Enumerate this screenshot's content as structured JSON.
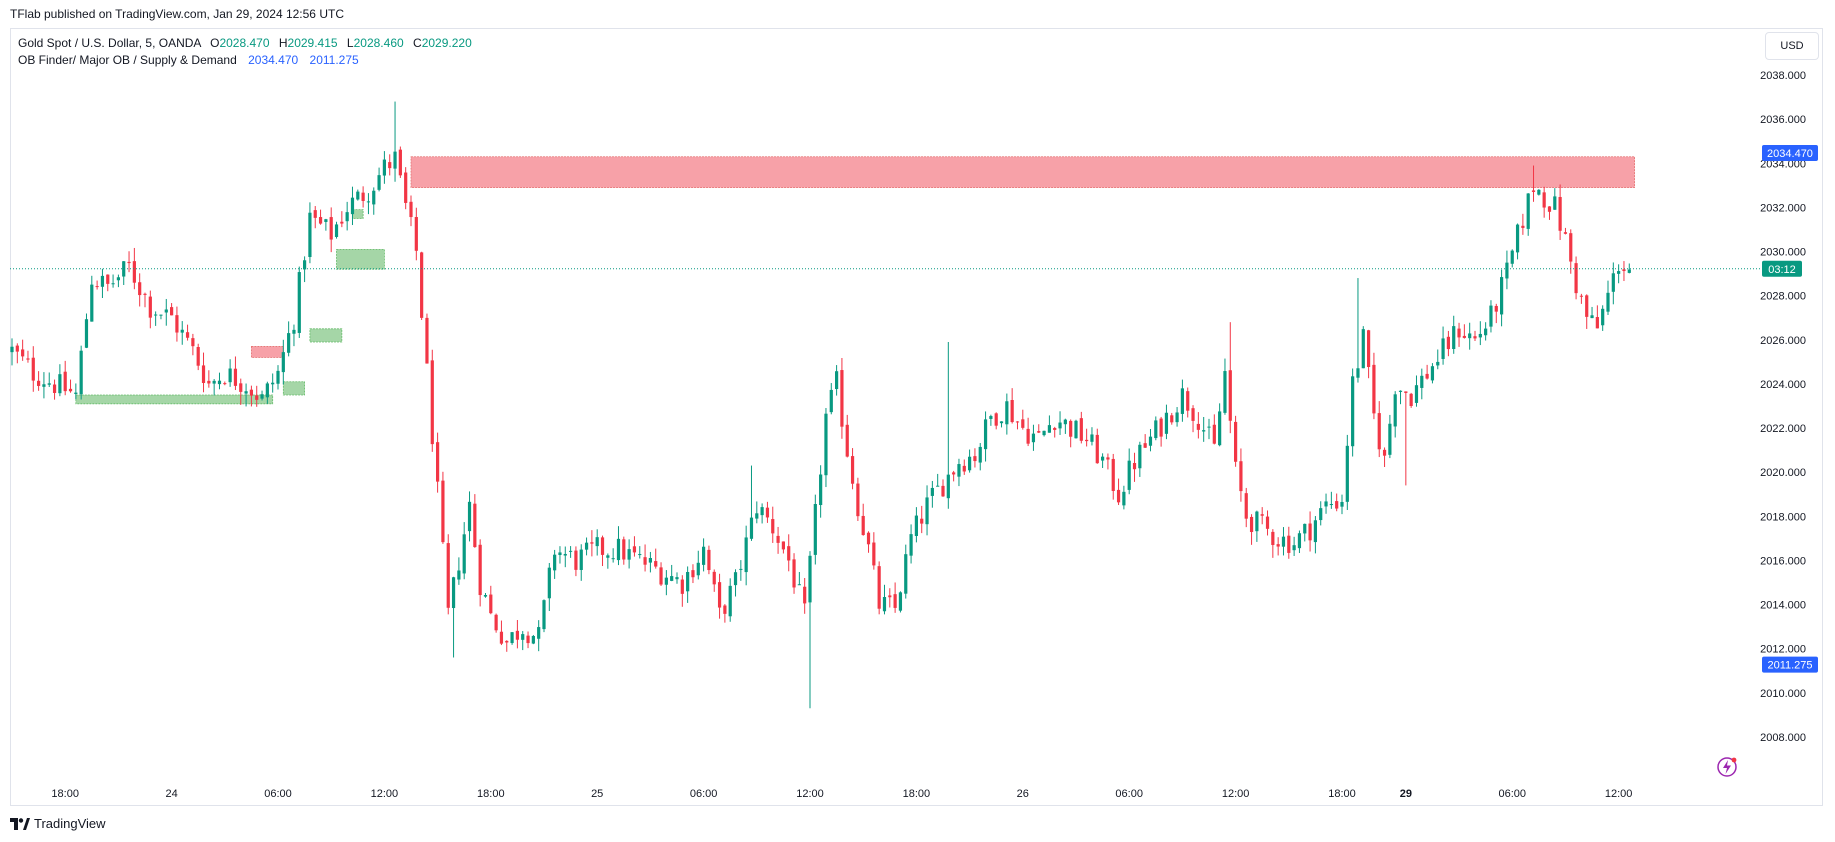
{
  "published_line": "TFlab published on TradingView.com, Jan 29, 2024 12:56 UTC",
  "legend": {
    "symbol": "Gold Spot / U.S. Dollar, 5, OANDA",
    "o_label": "O",
    "o_value": "2028.470",
    "h_label": "H",
    "h_value": "2029.415",
    "l_label": "L",
    "l_value": "2028.460",
    "c_label": "C",
    "c_value": "2029.220",
    "indicator": "OB Finder/ Major OB / Supply & Demand",
    "ind_value_1": "2034.470",
    "ind_value_2": "2011.275"
  },
  "currency_button": "USD",
  "footer_brand": "TradingView",
  "colors": {
    "up": "#089981",
    "down": "#f23645",
    "supply_zone": "#f7a1a8",
    "demand_zone": "#a5d6a7",
    "label_blue": "#2962ff",
    "last_price": "#089981"
  },
  "chart_data": {
    "type": "candlestick",
    "ylim": [
      2006.5,
      2039.5
    ],
    "y_ticks": [
      "2008.000",
      "2010.000",
      "2012.000",
      "2014.000",
      "2016.000",
      "2018.000",
      "2020.000",
      "2022.000",
      "2024.000",
      "2026.000",
      "2028.000",
      "2030.000",
      "2032.000",
      "2034.000",
      "2036.000",
      "2038.000"
    ],
    "x_ticks": [
      {
        "label": "18:00",
        "i": 10
      },
      {
        "label": "24",
        "i": 30
      },
      {
        "label": "06:00",
        "i": 50
      },
      {
        "label": "12:00",
        "i": 70
      },
      {
        "label": "18:00",
        "i": 90
      },
      {
        "label": "25",
        "i": 110
      },
      {
        "label": "06:00",
        "i": 130
      },
      {
        "label": "12:00",
        "i": 150
      },
      {
        "label": "18:00",
        "i": 170
      },
      {
        "label": "26",
        "i": 190
      },
      {
        "label": "06:00",
        "i": 210
      },
      {
        "label": "12:00",
        "i": 230
      },
      {
        "label": "18:00",
        "i": 250
      },
      {
        "label": "29",
        "i": 262
      },
      {
        "label": "06:00",
        "i": 282
      },
      {
        "label": "12:00",
        "i": 302
      }
    ],
    "n_bars": 305,
    "close_path": [
      [
        0,
        2025.5
      ],
      [
        4,
        2024.5
      ],
      [
        8,
        2024.0
      ],
      [
        12,
        2023.5
      ],
      [
        15,
        2028.8
      ],
      [
        18,
        2028.4
      ],
      [
        22,
        2029.3
      ],
      [
        26,
        2027.5
      ],
      [
        30,
        2027.0
      ],
      [
        34,
        2025.5
      ],
      [
        37,
        2024.0
      ],
      [
        40,
        2024.5
      ],
      [
        44,
        2024.0
      ],
      [
        47,
        2023.3
      ],
      [
        50,
        2024.5
      ],
      [
        53,
        2027.0
      ],
      [
        56,
        2031.5
      ],
      [
        60,
        2030.8
      ],
      [
        63,
        2032.0
      ],
      [
        67,
        2032.8
      ],
      [
        70,
        2033.8
      ],
      [
        72,
        2034.2
      ],
      [
        74,
        2032.0
      ],
      [
        76,
        2030.0
      ],
      [
        78,
        2024.5
      ],
      [
        80,
        2019.0
      ],
      [
        82,
        2013.5
      ],
      [
        84,
        2016.0
      ],
      [
        86,
        2018.5
      ],
      [
        88,
        2015.0
      ],
      [
        90,
        2013.5
      ],
      [
        93,
        2012.3
      ],
      [
        96,
        2013.0
      ],
      [
        99,
        2012.5
      ],
      [
        102,
        2016.5
      ],
      [
        106,
        2016.0
      ],
      [
        110,
        2016.5
      ],
      [
        114,
        2016.5
      ],
      [
        118,
        2016.0
      ],
      [
        122,
        2015.5
      ],
      [
        126,
        2015.0
      ],
      [
        130,
        2016.5
      ],
      [
        133,
        2013.5
      ],
      [
        136,
        2015.0
      ],
      [
        140,
        2018.5
      ],
      [
        143,
        2017.5
      ],
      [
        146,
        2016.0
      ],
      [
        149,
        2013.5
      ],
      [
        151,
        2018.0
      ],
      [
        153,
        2022.5
      ],
      [
        155,
        2024.0
      ],
      [
        157,
        2021.0
      ],
      [
        159,
        2018.5
      ],
      [
        161,
        2016.5
      ],
      [
        163,
        2014.0
      ],
      [
        166,
        2013.8
      ],
      [
        169,
        2017.0
      ],
      [
        172,
        2018.5
      ],
      [
        175,
        2019.5
      ],
      [
        178,
        2020.5
      ],
      [
        181,
        2020.8
      ],
      [
        184,
        2022.5
      ],
      [
        187,
        2023.0
      ],
      [
        190,
        2022.0
      ],
      [
        193,
        2021.5
      ],
      [
        196,
        2022.5
      ],
      [
        199,
        2022.0
      ],
      [
        202,
        2021.5
      ],
      [
        205,
        2020.5
      ],
      [
        208,
        2019.0
      ],
      [
        211,
        2020.5
      ],
      [
        214,
        2021.5
      ],
      [
        217,
        2022.5
      ],
      [
        220,
        2023.5
      ],
      [
        223,
        2022.5
      ],
      [
        226,
        2021.0
      ],
      [
        228,
        2024.5
      ],
      [
        230,
        2020.0
      ],
      [
        232,
        2018.0
      ],
      [
        235,
        2017.5
      ],
      [
        238,
        2017.0
      ],
      [
        241,
        2016.8
      ],
      [
        244,
        2017.5
      ],
      [
        247,
        2018.5
      ],
      [
        250,
        2018.8
      ],
      [
        252,
        2024.0
      ],
      [
        254,
        2026.0
      ],
      [
        256,
        2022.5
      ],
      [
        258,
        2020.5
      ],
      [
        260,
        2024.0
      ],
      [
        263,
        2023.5
      ],
      [
        266,
        2024.5
      ],
      [
        269,
        2025.5
      ],
      [
        272,
        2026.5
      ],
      [
        275,
        2026.0
      ],
      [
        278,
        2027.0
      ],
      [
        281,
        2029.0
      ],
      [
        284,
        2031.5
      ],
      [
        286,
        2033.0
      ],
      [
        288,
        2032.5
      ],
      [
        290,
        2032.0
      ],
      [
        292,
        2030.5
      ],
      [
        294,
        2028.5
      ],
      [
        296,
        2027.0
      ],
      [
        298,
        2026.5
      ],
      [
        300,
        2028.0
      ],
      [
        302,
        2029.5
      ],
      [
        304,
        2029.2
      ]
    ],
    "spikes": [
      {
        "i": 72,
        "high": 2036.8
      },
      {
        "i": 83,
        "low": 2011.6
      },
      {
        "i": 139,
        "high": 2020.3
      },
      {
        "i": 150,
        "low": 2009.3
      },
      {
        "i": 176,
        "high": 2025.9
      },
      {
        "i": 229,
        "high": 2026.8
      },
      {
        "i": 253,
        "high": 2028.8
      },
      {
        "i": 262,
        "low": 2019.4
      },
      {
        "i": 286,
        "high": 2033.9
      }
    ],
    "zones": [
      {
        "kind": "supply",
        "from": 75,
        "to": 305,
        "top": 2034.3,
        "bottom": 2032.9
      },
      {
        "kind": "supply",
        "from": 45,
        "to": 51,
        "top": 2025.7,
        "bottom": 2025.2
      },
      {
        "kind": "demand",
        "from": 12,
        "to": 49,
        "top": 2023.5,
        "bottom": 2023.1
      },
      {
        "kind": "demand",
        "from": 51,
        "to": 55,
        "top": 2024.1,
        "bottom": 2023.5
      },
      {
        "kind": "demand",
        "from": 56,
        "to": 62,
        "top": 2026.5,
        "bottom": 2025.9
      },
      {
        "kind": "demand",
        "from": 61,
        "to": 70,
        "top": 2030.1,
        "bottom": 2029.2
      },
      {
        "kind": "demand",
        "from": 64,
        "to": 66,
        "top": 2031.9,
        "bottom": 2031.5
      }
    ],
    "last_price": 2029.22,
    "last_price_label": "03:12",
    "tagged_levels": [
      {
        "value": 2034.47,
        "label": "2034.470"
      },
      {
        "value": 2011.275,
        "label": "2011.275"
      }
    ]
  }
}
